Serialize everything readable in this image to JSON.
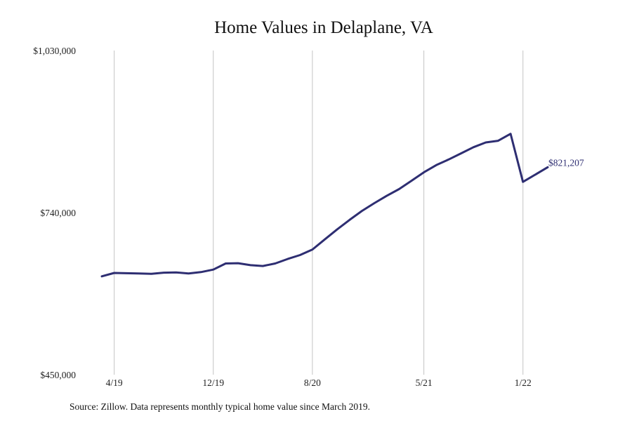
{
  "chart_data": {
    "type": "line",
    "title": "Home Values in Delaplane, VA",
    "xlabel": "",
    "ylabel": "",
    "ylim": [
      450000,
      1030000
    ],
    "y_ticks": [
      "$1,030,000",
      "$740,000",
      "$450,000"
    ],
    "y_tick_values": [
      1030000,
      740000,
      450000
    ],
    "x_ticks": [
      "4/19",
      "12/19",
      "8/20",
      "5/21",
      "1/22"
    ],
    "x_tick_dates": [
      "2019-04",
      "2019-12",
      "2020-08",
      "2021-05",
      "2022-01"
    ],
    "grid": "vertical",
    "series": [
      {
        "color": "#2e2e72",
        "x": [
          "2019-03",
          "2019-04",
          "2019-05",
          "2019-06",
          "2019-07",
          "2019-08",
          "2019-09",
          "2019-10",
          "2019-11",
          "2019-12",
          "2020-01",
          "2020-02",
          "2020-03",
          "2020-04",
          "2020-05",
          "2020-06",
          "2020-07",
          "2020-08",
          "2020-09",
          "2020-10",
          "2020-11",
          "2020-12",
          "2021-01",
          "2021-02",
          "2021-03",
          "2021-04",
          "2021-05",
          "2021-06",
          "2021-07",
          "2021-08",
          "2021-09",
          "2021-10",
          "2021-11",
          "2021-12",
          "2022-01",
          "2022-02",
          "2022-03"
        ],
        "values": [
          626000,
          632000,
          631500,
          631000,
          630500,
          632500,
          633000,
          631000,
          633500,
          638000,
          649000,
          649500,
          646000,
          644500,
          649000,
          657000,
          664000,
          674000,
          692000,
          710000,
          727000,
          743000,
          757000,
          770000,
          782000,
          797000,
          812000,
          825000,
          835000,
          846000,
          857000,
          865500,
          868500,
          881000,
          795000,
          808000,
          821207
        ]
      }
    ],
    "end_label": "$821,207",
    "source": "Source: Zillow. Data represents monthly typical home value since March 2019."
  }
}
